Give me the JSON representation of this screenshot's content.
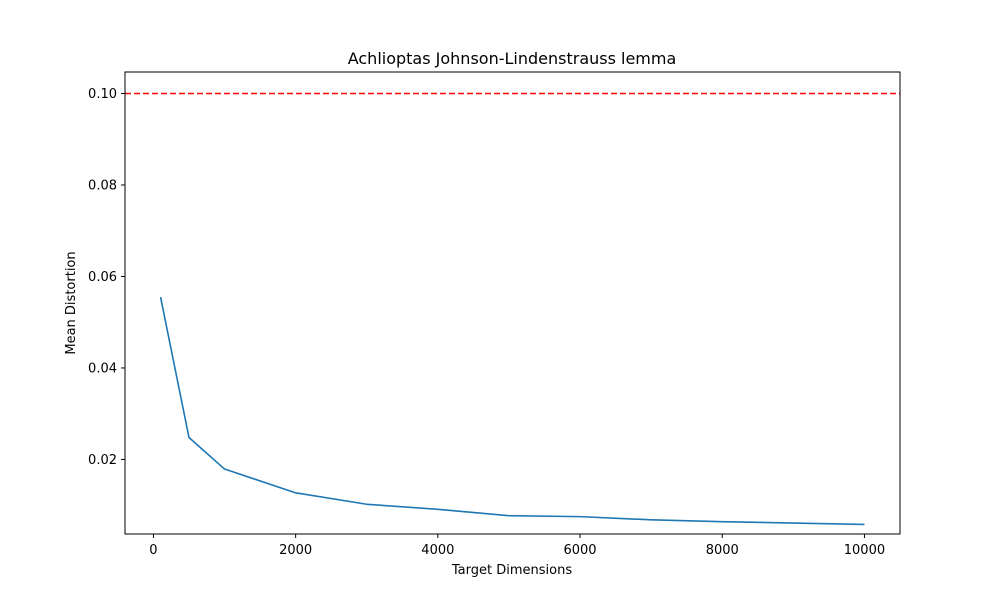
{
  "chart_data": {
    "type": "line",
    "title": "Achlioptas Johnson-Lindenstrauss lemma",
    "xlabel": "Target Dimensions",
    "ylabel": "Mean Distortion",
    "xlim": [
      -400,
      10500
    ],
    "ylim": [
      0.0037,
      0.1047
    ],
    "grid": false,
    "x_ticks": [
      0,
      2000,
      4000,
      6000,
      8000,
      10000
    ],
    "x_tick_labels": [
      "0",
      "2000",
      "4000",
      "6000",
      "8000",
      "10000"
    ],
    "y_ticks": [
      0.02,
      0.04,
      0.06,
      0.08,
      0.1
    ],
    "y_tick_labels": [
      "0.02",
      "0.04",
      "0.06",
      "0.08",
      "0.10"
    ],
    "series": [
      {
        "name": "Mean Distortion",
        "color": "#1f77b4",
        "style": "solid",
        "x": [
          100,
          500,
          1000,
          2000,
          3000,
          4000,
          5000,
          6000,
          7000,
          8000,
          9000,
          10000
        ],
        "y": [
          0.0555,
          0.0248,
          0.0179,
          0.0127,
          0.0102,
          0.0091,
          0.0077,
          0.0075,
          0.0068,
          0.0064,
          0.0061,
          0.0058
        ]
      }
    ],
    "reference_line": {
      "orientation": "horizontal",
      "y": 0.1,
      "color": "#ff0000",
      "style": "dashed"
    }
  }
}
